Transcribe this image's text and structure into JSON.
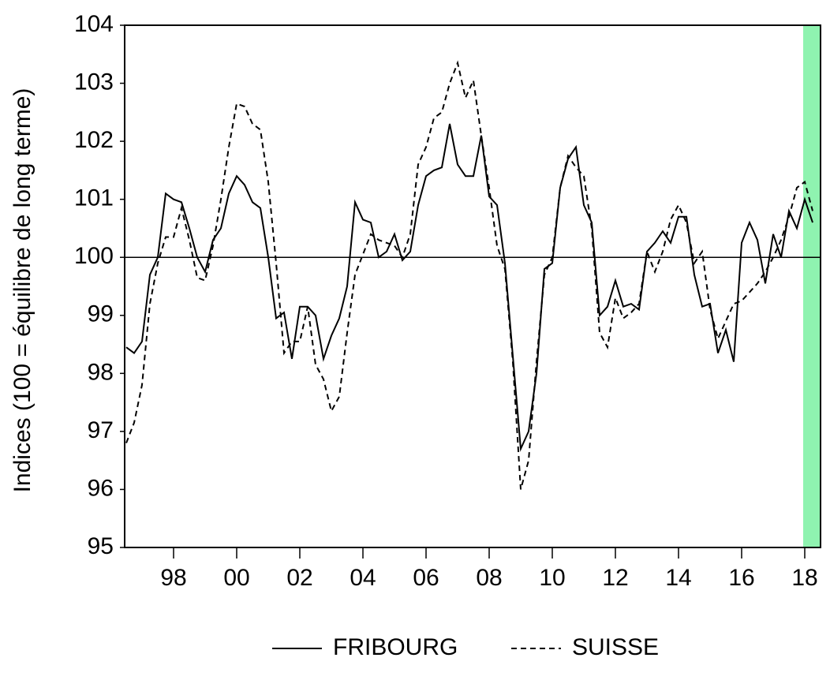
{
  "chart_data": {
    "type": "line",
    "y_axis_label": "Indices (100 = équilibre de long terme)",
    "x": [
      1996.5,
      1996.75,
      1997,
      1997.25,
      1997.5,
      1997.75,
      1998,
      1998.25,
      1998.5,
      1998.75,
      1999,
      1999.25,
      1999.5,
      1999.75,
      2000,
      2000.25,
      2000.5,
      2000.75,
      2001,
      2001.25,
      2001.5,
      2001.75,
      2002,
      2002.25,
      2002.5,
      2002.75,
      2003,
      2003.25,
      2003.5,
      2003.75,
      2004,
      2004.25,
      2004.5,
      2004.75,
      2005,
      2005.25,
      2005.5,
      2005.75,
      2006,
      2006.25,
      2006.5,
      2006.75,
      2007,
      2007.25,
      2007.5,
      2007.75,
      2008,
      2008.25,
      2008.5,
      2008.75,
      2009,
      2009.25,
      2009.5,
      2009.75,
      2010,
      2010.25,
      2010.5,
      2010.75,
      2011,
      2011.25,
      2011.5,
      2011.75,
      2012,
      2012.25,
      2012.5,
      2012.75,
      2013,
      2013.25,
      2013.5,
      2013.75,
      2014,
      2014.25,
      2014.5,
      2014.75,
      2015,
      2015.25,
      2015.5,
      2015.75,
      2016,
      2016.25,
      2016.5,
      2016.75,
      2017,
      2017.25,
      2017.5,
      2017.75,
      2018,
      2018.25
    ],
    "series": [
      {
        "name": "FRIBOURG",
        "color": "#000000",
        "dash": "solid",
        "values": [
          98.45,
          98.35,
          98.55,
          99.7,
          100.0,
          101.1,
          101.0,
          100.95,
          100.5,
          100.0,
          99.75,
          100.3,
          100.5,
          101.1,
          101.4,
          101.25,
          100.95,
          100.85,
          100.0,
          98.95,
          99.05,
          98.25,
          99.15,
          99.15,
          99.0,
          98.25,
          98.65,
          98.95,
          99.5,
          100.95,
          100.65,
          100.6,
          100.0,
          100.1,
          100.4,
          99.95,
          100.1,
          100.9,
          101.4,
          101.5,
          101.55,
          102.3,
          101.6,
          101.4,
          101.4,
          102.1,
          101.05,
          100.9,
          99.9,
          98.3,
          96.7,
          97.0,
          98.0,
          99.8,
          99.9,
          101.2,
          101.7,
          101.9,
          100.9,
          100.6,
          99.0,
          99.15,
          99.6,
          99.15,
          99.2,
          99.1,
          100.1,
          100.25,
          100.45,
          100.25,
          100.7,
          100.7,
          99.7,
          99.15,
          99.2,
          98.35,
          98.75,
          98.2,
          100.25,
          100.6,
          100.3,
          99.55,
          100.4,
          100.0,
          100.8,
          100.5,
          101.0,
          100.6
        ]
      },
      {
        "name": "SUISSE",
        "color": "#000000",
        "dash": "dashed",
        "values": [
          96.8,
          97.15,
          97.8,
          99.2,
          99.9,
          100.35,
          100.35,
          100.85,
          100.3,
          99.65,
          99.6,
          100.2,
          101.0,
          101.9,
          102.65,
          102.6,
          102.3,
          102.2,
          101.3,
          99.9,
          98.35,
          98.55,
          98.55,
          99.15,
          98.15,
          97.9,
          97.35,
          97.6,
          98.7,
          99.7,
          100.05,
          100.4,
          100.3,
          100.25,
          100.2,
          100.0,
          100.4,
          101.6,
          101.9,
          102.4,
          102.5,
          103.0,
          103.35,
          102.75,
          103.05,
          102.1,
          101.2,
          100.2,
          99.8,
          98.2,
          96.0,
          96.5,
          98.2,
          99.7,
          100.0,
          101.2,
          101.75,
          101.55,
          101.4,
          100.5,
          98.7,
          98.45,
          99.3,
          98.95,
          99.05,
          99.2,
          100.1,
          99.75,
          100.1,
          100.65,
          100.9,
          100.6,
          99.9,
          100.1,
          99.1,
          98.6,
          98.9,
          99.2,
          99.25,
          99.4,
          99.55,
          99.75,
          100.0,
          100.3,
          100.7,
          101.2,
          101.3,
          100.8
        ]
      }
    ],
    "xlim": [
      1996.45,
      2018.5
    ],
    "xticks": [
      {
        "value": 1998,
        "label": "98"
      },
      {
        "value": 2000,
        "label": "00"
      },
      {
        "value": 2002,
        "label": "02"
      },
      {
        "value": 2004,
        "label": "04"
      },
      {
        "value": 2006,
        "label": "06"
      },
      {
        "value": 2008,
        "label": "08"
      },
      {
        "value": 2010,
        "label": "10"
      },
      {
        "value": 2012,
        "label": "12"
      },
      {
        "value": 2014,
        "label": "14"
      },
      {
        "value": 2016,
        "label": "16"
      },
      {
        "value": 2018,
        "label": "18"
      }
    ],
    "ylim": [
      95,
      104
    ],
    "yticks": [
      95,
      96,
      97,
      98,
      99,
      100,
      101,
      102,
      103,
      104
    ],
    "reference_line": 100,
    "shaded_region": [
      2017.95,
      2018.5
    ],
    "shade_color": "#8ff3b0",
    "legend": "bottom"
  }
}
